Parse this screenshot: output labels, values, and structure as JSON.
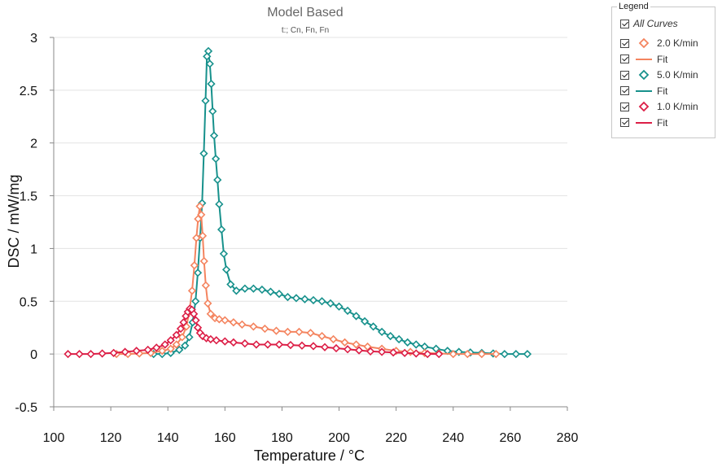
{
  "chart_data": {
    "type": "scatter",
    "title": "Model Based",
    "subtitle": "t:; Cn, Fn, Fn",
    "xlabel": "Temperature / °C",
    "ylabel": "DSC / mW/mg",
    "xlim": [
      100,
      280
    ],
    "ylim": [
      -0.5,
      3
    ],
    "xticks": [
      100,
      120,
      140,
      160,
      180,
      200,
      220,
      240,
      260,
      280
    ],
    "yticks": [
      -0.5,
      0,
      0.5,
      1,
      1.5,
      2,
      2.5,
      3
    ],
    "ytick_labels": [
      "-0.5",
      "0",
      "0.5",
      "1",
      "1.5",
      "2",
      "2.5",
      "3"
    ],
    "grid": "horizontal",
    "legend_position": "right",
    "series": [
      {
        "name": "2.0 K/min",
        "color": "#f4845f",
        "marker": "diamond",
        "fit_name": "Fit",
        "x": [
          122,
          126,
          130,
          134,
          138,
          141,
          143,
          145,
          146.5,
          147.5,
          148.5,
          149.3,
          150,
          150.6,
          151.2,
          151.7,
          152.2,
          152.7,
          153.3,
          154,
          155,
          156.5,
          158,
          160,
          163,
          166,
          170,
          174,
          178,
          182,
          186,
          190,
          194,
          198,
          202,
          206,
          210,
          215,
          220,
          225,
          230,
          235,
          240,
          245,
          250,
          255
        ],
        "y": [
          0,
          0,
          0.005,
          0.01,
          0.03,
          0.05,
          0.09,
          0.16,
          0.26,
          0.4,
          0.6,
          0.84,
          1.1,
          1.28,
          1.4,
          1.32,
          1.12,
          0.88,
          0.65,
          0.48,
          0.38,
          0.34,
          0.33,
          0.32,
          0.3,
          0.28,
          0.26,
          0.24,
          0.22,
          0.21,
          0.21,
          0.2,
          0.17,
          0.14,
          0.11,
          0.09,
          0.07,
          0.05,
          0.03,
          0.02,
          0.01,
          0.005,
          0,
          0,
          0,
          0
        ]
      },
      {
        "name": "5.0 K/min",
        "color": "#17918c",
        "marker": "diamond",
        "fit_name": "Fit",
        "x": [
          135,
          138,
          141,
          144,
          146,
          147.5,
          148.7,
          149.7,
          150.5,
          151.3,
          152,
          152.6,
          153.2,
          153.7,
          154.2,
          154.7,
          155.2,
          155.7,
          156.2,
          156.8,
          157.4,
          158,
          158.8,
          159.6,
          160.5,
          162,
          164,
          167,
          170,
          173,
          176,
          179,
          182,
          185,
          188,
          191,
          194,
          197,
          200,
          203,
          206,
          209,
          212,
          215,
          218,
          221,
          224,
          227,
          230,
          234,
          238,
          242,
          246,
          250,
          254,
          258,
          262,
          266
        ],
        "y": [
          0,
          0,
          0.01,
          0.04,
          0.08,
          0.16,
          0.3,
          0.5,
          0.77,
          1.1,
          1.43,
          1.9,
          2.4,
          2.82,
          2.87,
          2.75,
          2.56,
          2.3,
          2.07,
          1.85,
          1.65,
          1.42,
          1.18,
          0.95,
          0.8,
          0.66,
          0.6,
          0.62,
          0.62,
          0.61,
          0.59,
          0.57,
          0.54,
          0.53,
          0.52,
          0.51,
          0.5,
          0.48,
          0.45,
          0.41,
          0.36,
          0.31,
          0.26,
          0.21,
          0.17,
          0.14,
          0.11,
          0.09,
          0.07,
          0.05,
          0.03,
          0.02,
          0.015,
          0.01,
          0.005,
          0,
          0,
          0
        ]
      },
      {
        "name": "1.0 K/min",
        "color": "#dc1e46",
        "marker": "diamond",
        "fit_name": "Fit",
        "x": [
          105,
          109,
          113,
          117,
          121,
          125,
          129,
          133,
          136,
          139,
          141,
          143,
          144.5,
          145.5,
          146.3,
          147,
          147.7,
          148.4,
          149.1,
          149.8,
          150.5,
          151.3,
          152.2,
          153.5,
          155,
          157,
          160,
          163,
          167,
          171,
          175,
          179,
          183,
          187,
          191,
          195,
          199,
          203,
          207,
          211,
          215,
          219,
          223,
          227,
          231,
          235
        ],
        "y": [
          0,
          0,
          0,
          0.005,
          0.01,
          0.02,
          0.03,
          0.04,
          0.06,
          0.09,
          0.13,
          0.18,
          0.24,
          0.3,
          0.36,
          0.4,
          0.43,
          0.42,
          0.38,
          0.32,
          0.25,
          0.2,
          0.17,
          0.15,
          0.14,
          0.13,
          0.12,
          0.11,
          0.1,
          0.09,
          0.09,
          0.09,
          0.085,
          0.08,
          0.075,
          0.065,
          0.055,
          0.045,
          0.035,
          0.025,
          0.02,
          0.015,
          0.01,
          0.005,
          0,
          0
        ]
      }
    ]
  },
  "legend": {
    "title": "Legend",
    "all_curves_label": "All Curves",
    "items": [
      {
        "label": "2.0 K/min",
        "kind": "marker",
        "color": "#f4845f"
      },
      {
        "label": "Fit",
        "kind": "line",
        "color": "#f4845f"
      },
      {
        "label": "5.0 K/min",
        "kind": "marker",
        "color": "#17918c"
      },
      {
        "label": "Fit",
        "kind": "line",
        "color": "#17918c"
      },
      {
        "label": "1.0 K/min",
        "kind": "marker",
        "color": "#dc1e46"
      },
      {
        "label": "Fit",
        "kind": "line",
        "color": "#dc1e46"
      }
    ]
  }
}
